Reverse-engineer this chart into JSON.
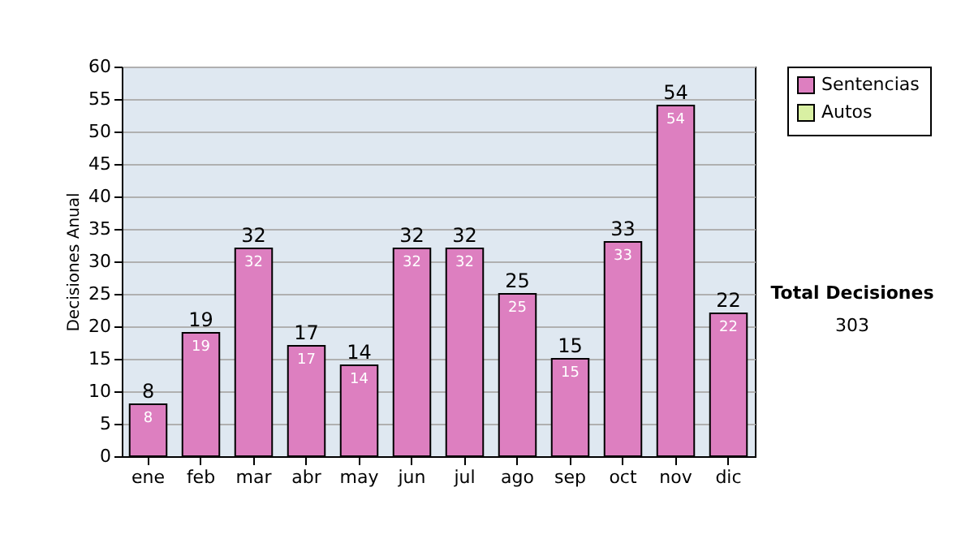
{
  "chart_data": {
    "type": "bar",
    "ylabel": "Decisiones Anual",
    "categories": [
      "ene",
      "feb",
      "mar",
      "abr",
      "may",
      "jun",
      "jul",
      "ago",
      "sep",
      "oct",
      "nov",
      "dic"
    ],
    "series": [
      {
        "name": "Sentencias",
        "color": "#dd7fc0",
        "values": [
          8,
          19,
          32,
          17,
          14,
          32,
          32,
          25,
          15,
          33,
          54,
          22
        ]
      },
      {
        "name": "Autos",
        "color": "#d9f0a3",
        "values": [
          null,
          null,
          null,
          null,
          null,
          null,
          null,
          null,
          null,
          null,
          null,
          null
        ]
      }
    ],
    "data_labels": true,
    "totals": [
      "8",
      "19",
      "32",
      "17",
      "14",
      "32",
      "32",
      "25",
      "15",
      "33",
      "54",
      "22"
    ],
    "ylim": [
      0,
      60
    ],
    "yticks": [
      0,
      5,
      10,
      15,
      20,
      25,
      30,
      35,
      40,
      45,
      50,
      55,
      60
    ],
    "grid": "y",
    "legend": "right",
    "annotations": [
      "Total Decisiones",
      "303"
    ]
  }
}
